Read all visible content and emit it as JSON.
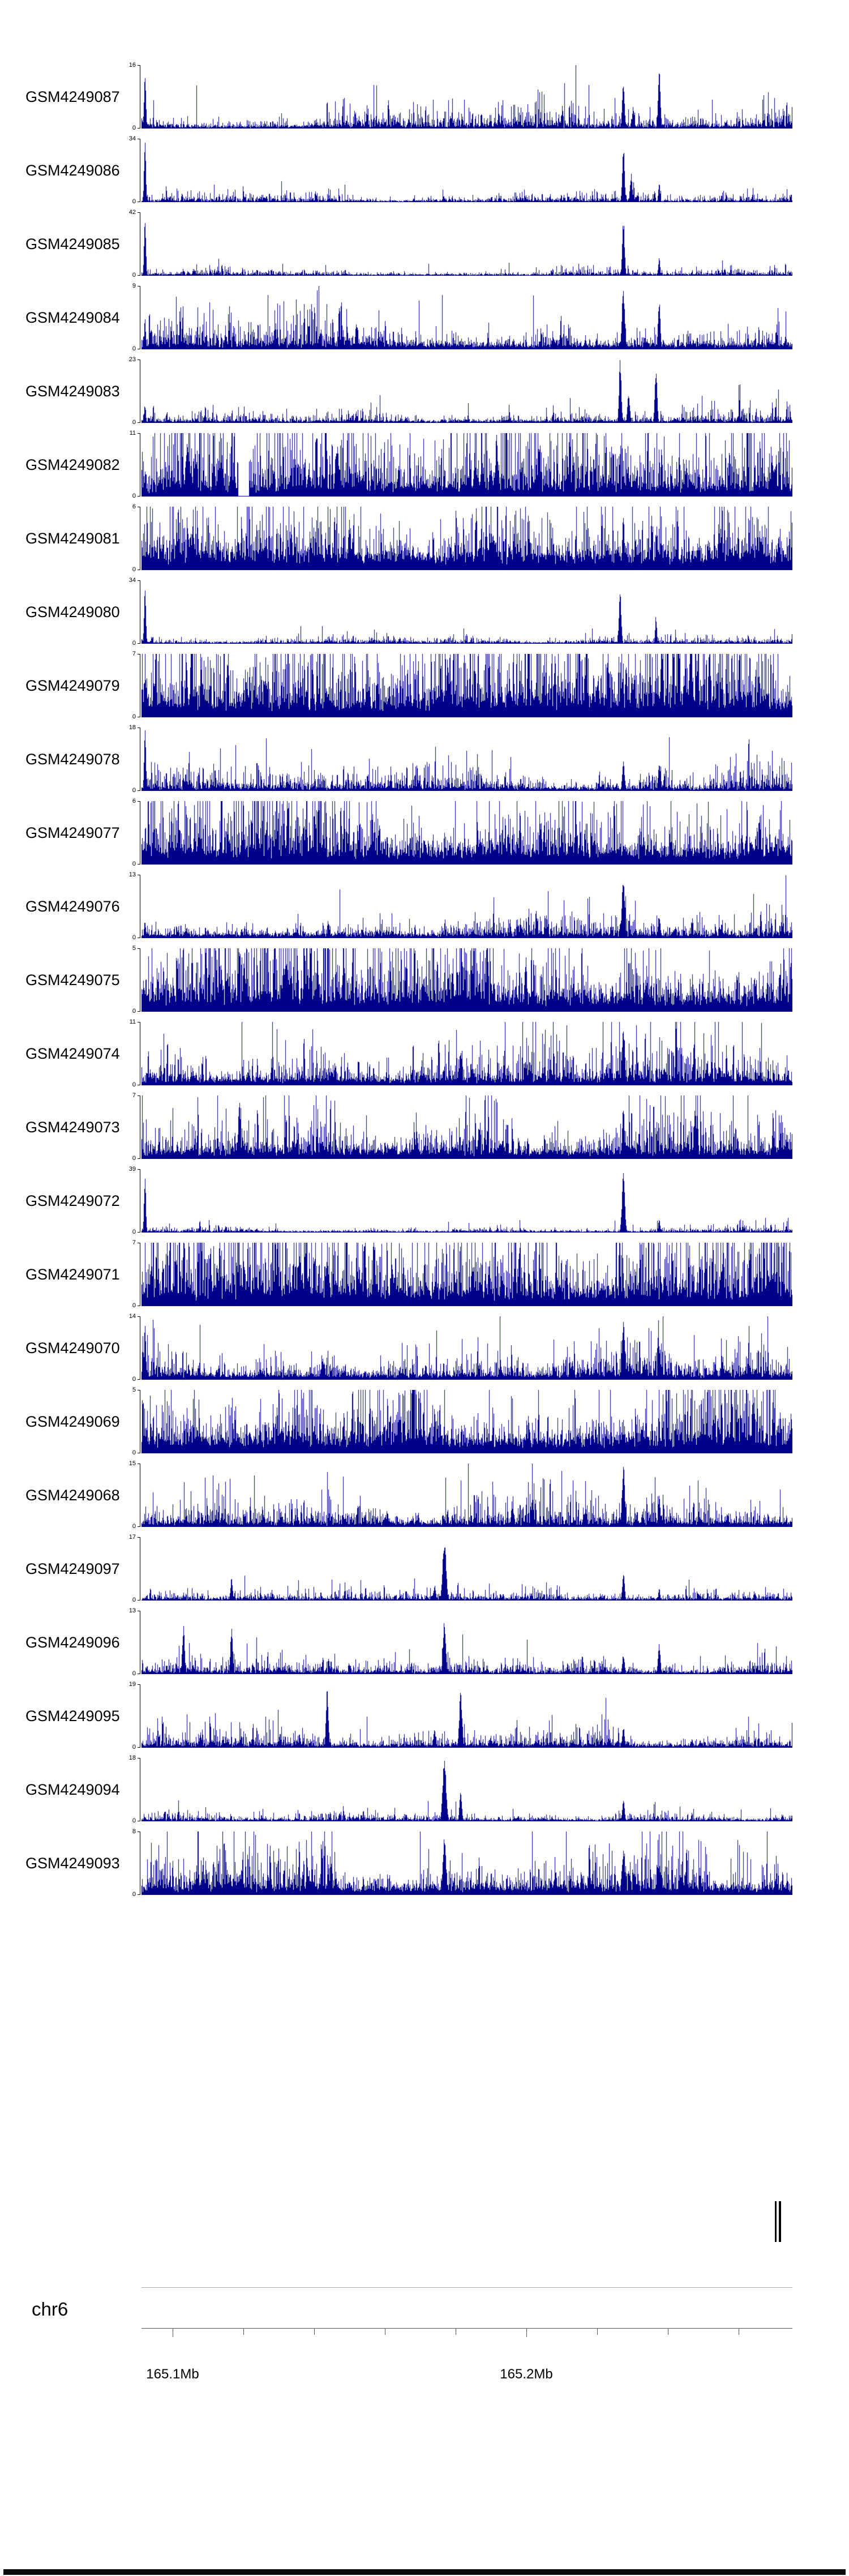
{
  "figure": {
    "chromosome_label": "chr6",
    "colors": {
      "signal": "#00008B",
      "annotation": "#000000",
      "axis": "#555555",
      "separator": "#aaaaaa"
    }
  },
  "chart_data": {
    "type": "area",
    "title": "",
    "description": "Stacked genomic signal (coverage pile-up) tracks for 25 GEO samples over chr6 ~165.09-165.27 Mb. Dark blue vertical bars show per-position signal; each track has a small y-axis with its data maximum at top and 0 at bottom. A gene annotation feature sits near 165.27 Mb, above a genome coordinate axis labeled chr6 with ticks at 165.1Mb and 165.2Mb. Peak positions in track signals are given as fractions of plot width; heights as fractions of track height.",
    "region": {
      "chromosome": "chr6",
      "start_mb": 165.091,
      "end_mb": 165.275,
      "labeled_ticks": [
        {
          "mb": 165.1,
          "label": "165.1Mb"
        },
        {
          "mb": 165.2,
          "label": "165.2Mb"
        }
      ],
      "minor_ticks_mb": [
        165.1,
        165.12,
        165.14,
        165.16,
        165.18,
        165.2,
        165.22,
        165.24,
        165.26
      ]
    },
    "annotation": {
      "features": [
        {
          "start_mb": 165.2702,
          "end_mb": 165.2708
        },
        {
          "start_mb": 165.2714,
          "end_mb": 165.272
        }
      ]
    },
    "tracks": [
      {
        "label": "GSM4249087",
        "ymax": "16",
        "ymin": "0",
        "signal": {
          "base": 0.02,
          "amp": 0.08,
          "peaks": [
            [
              0.005,
              1,
              1.5
            ],
            [
              0.74,
              0.78,
              2
            ],
            [
              0.755,
              0.35,
              2
            ],
            [
              0.795,
              0.95,
              2
            ]
          ]
        }
      },
      {
        "label": "GSM4249086",
        "ymax": "34",
        "ymin": "0",
        "signal": {
          "base": 0.012,
          "amp": 0.03,
          "peaks": [
            [
              0.005,
              1,
              1.5
            ],
            [
              0.74,
              0.88,
              2
            ],
            [
              0.752,
              0.45,
              2
            ],
            [
              0.795,
              0.32,
              1.5
            ]
          ]
        }
      },
      {
        "label": "GSM4249085",
        "ymax": "42",
        "ymin": "0",
        "signal": {
          "base": 0.012,
          "amp": 0.028,
          "peaks": [
            [
              0.005,
              0.97,
              1.5
            ],
            [
              0.74,
              0.92,
              2
            ],
            [
              0.795,
              0.3,
              1.5
            ]
          ]
        }
      },
      {
        "label": "GSM4249084",
        "ymax": "9",
        "ymin": "0",
        "signal": {
          "base": 0.045,
          "amp": 0.13,
          "peaks": [
            [
              0.005,
              0.5,
              1.5
            ],
            [
              0.33,
              0.45,
              2
            ],
            [
              0.74,
              1,
              2.5
            ],
            [
              0.795,
              0.78,
              2
            ]
          ]
        }
      },
      {
        "label": "GSM4249083",
        "ymax": "23",
        "ymin": "0",
        "signal": {
          "base": 0.018,
          "amp": 0.055,
          "peaks": [
            [
              0.005,
              0.3,
              1.5
            ],
            [
              0.735,
              1,
              2
            ],
            [
              0.748,
              0.5,
              2
            ],
            [
              0.79,
              0.92,
              2
            ]
          ]
        }
      },
      {
        "label": "GSM4249082",
        "ymax": "11",
        "ymin": "0",
        "signal": {
          "base": 0.1,
          "amp": 0.27,
          "peaks": [
            [
              0.07,
              0.9,
              3
            ],
            [
              0.3,
              0.85,
              3
            ]
          ],
          "gaps": [
            [
              0.148,
              0.165
            ]
          ]
        }
      },
      {
        "label": "GSM4249081",
        "ymax": "6",
        "ymin": "0",
        "signal": {
          "base": 0.16,
          "amp": 0.3,
          "peaks": [
            [
              0.74,
              0.9,
              2
            ]
          ]
        }
      },
      {
        "label": "GSM4249080",
        "ymax": "34",
        "ymin": "0",
        "signal": {
          "base": 0.012,
          "amp": 0.024,
          "peaks": [
            [
              0.005,
              1,
              1.5
            ],
            [
              0.735,
              0.82,
              2
            ],
            [
              0.79,
              0.45,
              1.5
            ]
          ]
        }
      },
      {
        "label": "GSM4249079",
        "ymax": "7",
        "ymin": "0",
        "signal": {
          "base": 0.16,
          "amp": 0.32,
          "peaks": [
            [
              0.47,
              0.95,
              2
            ]
          ]
        }
      },
      {
        "label": "GSM4249078",
        "ymax": "18",
        "ymin": "0",
        "signal": {
          "base": 0.028,
          "amp": 0.09,
          "peaks": [
            [
              0.005,
              1,
              1.5
            ],
            [
              0.74,
              0.5,
              2
            ],
            [
              0.795,
              0.48,
              2
            ]
          ]
        }
      },
      {
        "label": "GSM4249077",
        "ymax": "6",
        "ymin": "0",
        "signal": {
          "base": 0.15,
          "amp": 0.3,
          "peaks": []
        }
      },
      {
        "label": "GSM4249076",
        "ymax": "13",
        "ymin": "0",
        "signal": {
          "base": 0.035,
          "amp": 0.1,
          "peaks": [
            [
              0.005,
              0.3,
              1.5
            ],
            [
              0.74,
              1,
              2.5
            ],
            [
              0.795,
              0.38,
              2
            ]
          ]
        }
      },
      {
        "label": "GSM4249075",
        "ymax": "5",
        "ymin": "0",
        "signal": {
          "base": 0.16,
          "amp": 0.3,
          "peaks": [
            [
              0.31,
              0.95,
              2
            ],
            [
              0.59,
              0.9,
              2
            ]
          ]
        }
      },
      {
        "label": "GSM4249074",
        "ymax": "11",
        "ymin": "0",
        "signal": {
          "base": 0.06,
          "amp": 0.16,
          "peaks": [
            [
              0.49,
              0.6,
              2
            ],
            [
              0.74,
              1,
              2.5
            ]
          ]
        }
      },
      {
        "label": "GSM4249073",
        "ymax": "7",
        "ymin": "0",
        "signal": {
          "base": 0.08,
          "amp": 0.2,
          "peaks": [
            [
              0.15,
              1,
              2
            ],
            [
              0.74,
              0.85,
              2
            ],
            [
              0.85,
              0.8,
              2
            ]
          ]
        }
      },
      {
        "label": "GSM4249072",
        "ymax": "39",
        "ymin": "0",
        "signal": {
          "base": 0.012,
          "amp": 0.024,
          "peaks": [
            [
              0.005,
              1,
              1.5
            ],
            [
              0.74,
              0.95,
              2.5
            ],
            [
              0.795,
              0.22,
              1.5
            ]
          ]
        }
      },
      {
        "label": "GSM4249071",
        "ymax": "7",
        "ymin": "0",
        "signal": {
          "base": 0.16,
          "amp": 0.3,
          "peaks": [
            [
              0.58,
              0.9,
              2
            ]
          ]
        }
      },
      {
        "label": "GSM4249070",
        "ymax": "14",
        "ymin": "0",
        "signal": {
          "base": 0.05,
          "amp": 0.14,
          "peaks": [
            [
              0.005,
              0.9,
              1.5
            ],
            [
              0.74,
              0.92,
              2.5
            ],
            [
              0.795,
              0.4,
              2
            ]
          ]
        }
      },
      {
        "label": "GSM4249069",
        "ymax": "5",
        "ymin": "0",
        "signal": {
          "base": 0.16,
          "amp": 0.3,
          "peaks": []
        }
      },
      {
        "label": "GSM4249068",
        "ymax": "15",
        "ymin": "0",
        "signal": {
          "base": 0.04,
          "amp": 0.11,
          "peaks": [
            [
              0.6,
              0.5,
              2
            ],
            [
              0.74,
              1,
              2.5
            ],
            [
              0.795,
              0.5,
              2
            ]
          ]
        }
      },
      {
        "label": "GSM4249097",
        "ymax": "17",
        "ymin": "0",
        "signal": {
          "base": 0.015,
          "amp": 0.035,
          "peaks": [
            [
              0.138,
              0.35,
              2
            ],
            [
              0.45,
              0.25,
              2
            ],
            [
              0.465,
              1,
              3
            ],
            [
              0.74,
              0.45,
              2
            ],
            [
              0.795,
              0.2,
              1.5
            ]
          ]
        }
      },
      {
        "label": "GSM4249096",
        "ymax": "13",
        "ymin": "0",
        "signal": {
          "base": 0.02,
          "amp": 0.05,
          "peaks": [
            [
              0.064,
              0.8,
              2
            ],
            [
              0.138,
              0.75,
              2
            ],
            [
              0.465,
              0.9,
              2.5
            ],
            [
              0.74,
              0.32,
              2
            ],
            [
              0.795,
              0.5,
              2
            ]
          ]
        }
      },
      {
        "label": "GSM4249095",
        "ymax": "19",
        "ymin": "0",
        "signal": {
          "base": 0.025,
          "amp": 0.07,
          "peaks": [
            [
              0.09,
              0.25,
              2
            ],
            [
              0.285,
              1,
              2
            ],
            [
              0.45,
              0.3,
              2
            ],
            [
              0.49,
              0.9,
              2.5
            ],
            [
              0.74,
              0.35,
              2
            ]
          ]
        }
      },
      {
        "label": "GSM4249094",
        "ymax": "18",
        "ymin": "0",
        "signal": {
          "base": 0.015,
          "amp": 0.04,
          "peaks": [
            [
              0.465,
              1,
              3
            ],
            [
              0.49,
              0.5,
              2
            ],
            [
              0.74,
              0.35,
              2
            ]
          ]
        }
      },
      {
        "label": "GSM4249093",
        "ymax": "8",
        "ymin": "0",
        "signal": {
          "base": 0.07,
          "amp": 0.18,
          "peaks": [
            [
              0.465,
              1,
              2.5
            ],
            [
              0.74,
              0.78,
              2.5
            ],
            [
              0.795,
              0.55,
              2
            ]
          ]
        }
      }
    ]
  }
}
